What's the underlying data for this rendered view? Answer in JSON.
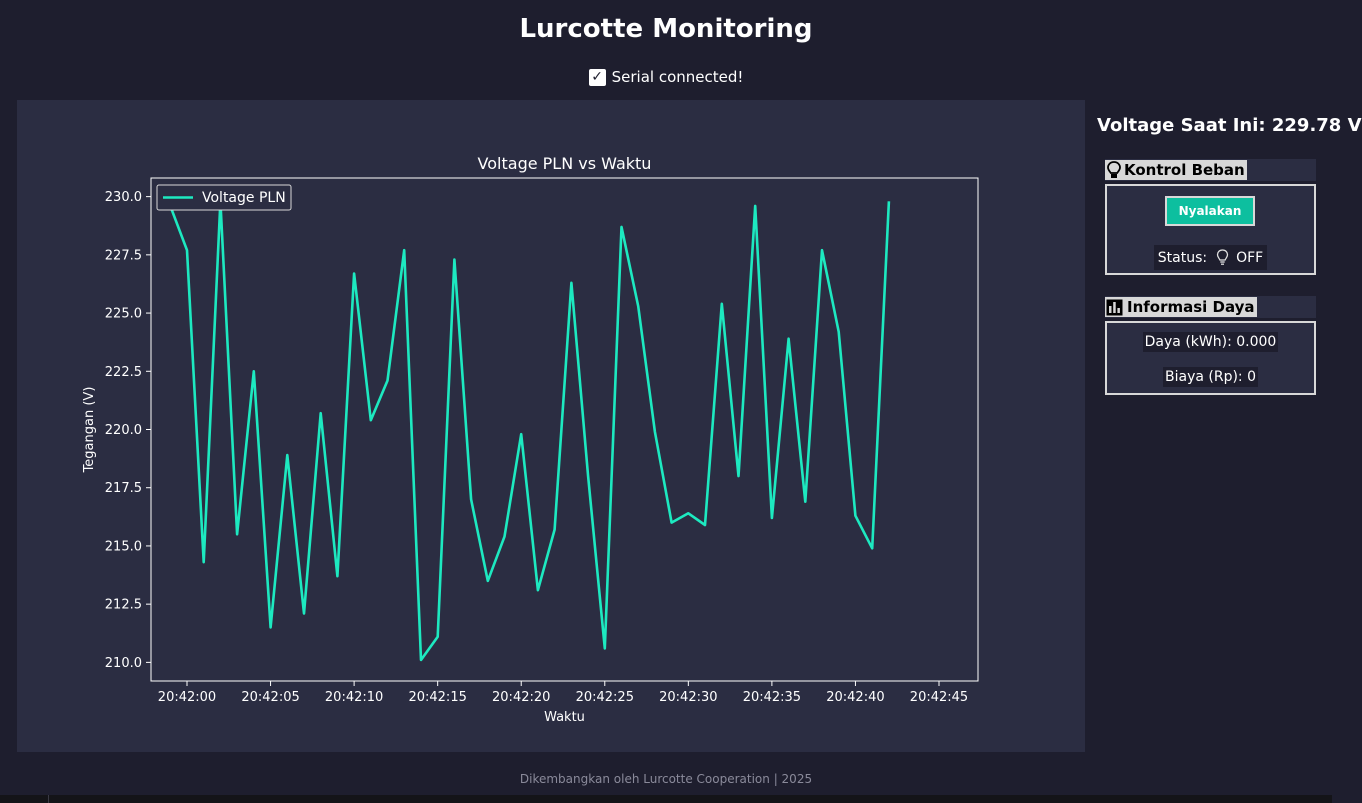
{
  "app": {
    "title": "Lurcotte Monitoring",
    "serial_status": "Serial connected!",
    "footer": "Dikembangkan oleh Lurcotte Cooperation | 2025"
  },
  "colors": {
    "background": "#1e1e2e",
    "panel": "#2b2d42",
    "line": "#1de9c0",
    "button": "#0dbf9f"
  },
  "sidebar": {
    "voltage_label": "Voltage Saat Ini: 229.78 V",
    "control": {
      "icon": "lightbulb-icon",
      "title": "Kontrol Beban",
      "button_label": "Nyalakan",
      "status_prefix": "Status:",
      "status_icon": "lightbulb-off-icon",
      "status_value": "OFF"
    },
    "power": {
      "icon": "bar-chart-icon",
      "title": "Informasi Daya",
      "energy_label": "Daya (kWh): 0.000",
      "cost_label": "Biaya (Rp): 0"
    }
  },
  "chart_data": {
    "type": "line",
    "title": "Voltage PLN vs Waktu",
    "xlabel": "Waktu",
    "ylabel": "Tegangan (V)",
    "ylim": [
      209.2,
      230.8
    ],
    "grid": false,
    "legend": "top-left",
    "series": [
      {
        "name": "Voltage PLN",
        "x": [
          "20:41:59",
          "20:42:00",
          "20:42:01",
          "20:42:02",
          "20:42:03",
          "20:42:04",
          "20:42:05",
          "20:42:06",
          "20:42:07",
          "20:42:08",
          "20:42:09",
          "20:42:10",
          "20:42:11",
          "20:42:12",
          "20:42:13",
          "20:42:14",
          "20:42:15",
          "20:42:16",
          "20:42:17",
          "20:42:18",
          "20:42:19",
          "20:42:20",
          "20:42:21",
          "20:42:22",
          "20:42:23",
          "20:42:24",
          "20:42:25",
          "20:42:26",
          "20:42:27",
          "20:42:28",
          "20:42:29",
          "20:42:30",
          "20:42:31",
          "20:42:32",
          "20:42:33",
          "20:42:34",
          "20:42:35",
          "20:42:36",
          "20:42:37",
          "20:42:38",
          "20:42:39",
          "20:42:40",
          "20:42:41",
          "20:42:42",
          "20:42:43",
          "20:42:44",
          "20:42:45"
        ],
        "values": [
          229.6,
          227.7,
          214.3,
          229.8,
          215.5,
          222.5,
          211.5,
          218.9,
          212.1,
          220.7,
          213.7,
          226.7,
          220.4,
          222.1,
          227.7,
          210.1,
          211.1,
          227.3,
          217.0,
          213.5,
          215.4,
          219.8,
          213.1,
          215.7,
          226.3,
          218.0,
          210.6,
          228.7,
          225.3,
          219.9,
          216.0,
          216.4,
          215.9,
          225.4,
          218.0,
          229.6,
          216.2,
          223.9,
          216.9,
          227.7,
          224.2,
          216.3,
          214.9,
          229.8,
          null,
          null,
          null
        ]
      }
    ],
    "xticks": [
      "20:42:00",
      "20:42:05",
      "20:42:10",
      "20:42:15",
      "20:42:20",
      "20:42:25",
      "20:42:30",
      "20:42:35",
      "20:42:40",
      "20:42:45"
    ],
    "yticks": [
      "210.0",
      "212.5",
      "215.0",
      "217.5",
      "220.0",
      "222.5",
      "225.0",
      "227.5",
      "230.0"
    ]
  }
}
